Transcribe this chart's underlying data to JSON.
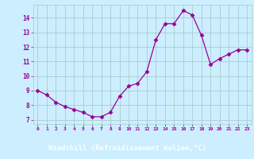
{
  "x": [
    0,
    1,
    2,
    3,
    4,
    5,
    6,
    7,
    8,
    9,
    10,
    11,
    12,
    13,
    14,
    15,
    16,
    17,
    18,
    19,
    20,
    21,
    22,
    23
  ],
  "y": [
    9.0,
    8.7,
    8.2,
    7.9,
    7.7,
    7.5,
    7.2,
    7.2,
    7.5,
    8.6,
    9.3,
    9.5,
    10.3,
    12.5,
    13.6,
    13.6,
    14.5,
    14.2,
    12.8,
    10.8,
    11.2,
    11.5,
    11.8,
    11.8
  ],
  "line_color": "#990099",
  "marker": "D",
  "marker_size": 2.5,
  "bg_color": "#cceeff",
  "grid_color": "#aacccc",
  "axis_label_color": "#990099",
  "tick_label_color": "#990099",
  "bottom_bar_color": "#9900aa",
  "xlabel": "Windchill (Refroidissement éolien,°C)",
  "ylabel_ticks": [
    7,
    8,
    9,
    10,
    11,
    12,
    13,
    14
  ],
  "xlim": [
    -0.5,
    23.5
  ],
  "ylim": [
    6.7,
    14.9
  ],
  "xticklabels": [
    "0",
    "1",
    "2",
    "3",
    "4",
    "5",
    "6",
    "7",
    "8",
    "9",
    "10",
    "11",
    "12",
    "13",
    "14",
    "15",
    "16",
    "17",
    "18",
    "19",
    "20",
    "21",
    "22",
    "23"
  ]
}
